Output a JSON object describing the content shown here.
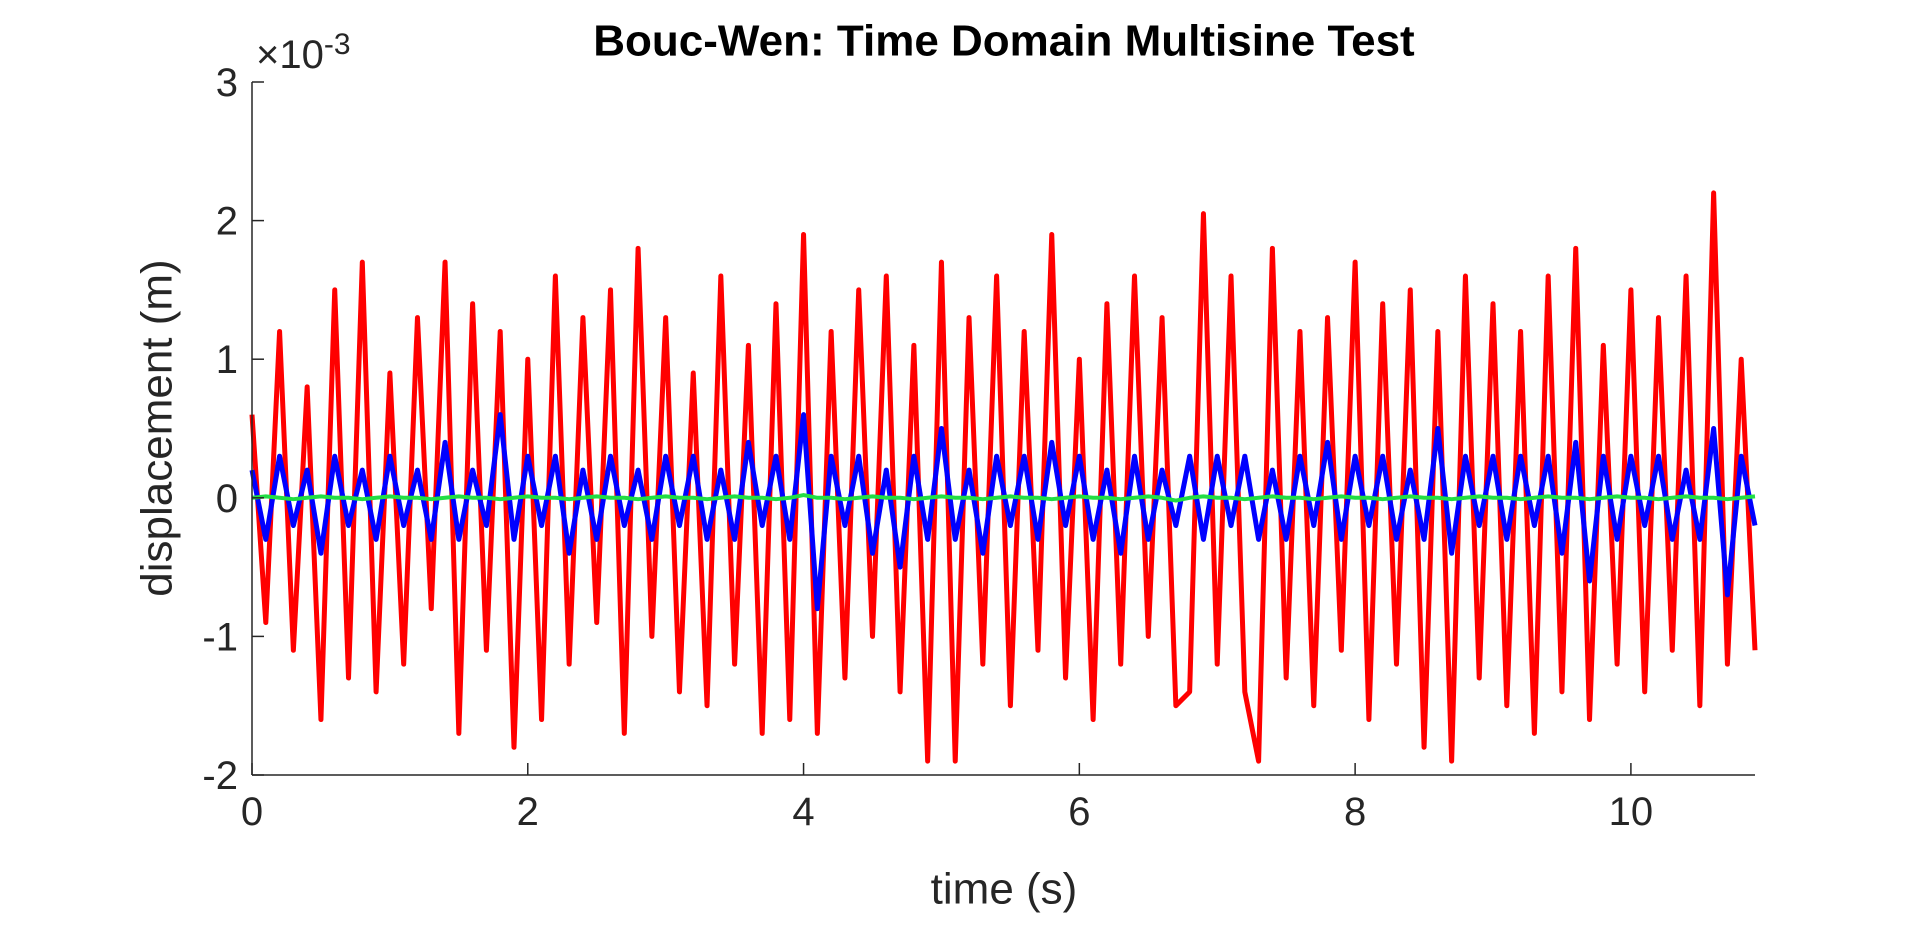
{
  "chart_data": {
    "type": "line",
    "title": "Bouc-Wen: Time Domain Multisine Test",
    "x_label": "time (s)",
    "y_label": "displacement (m)",
    "y_multiplier": {
      "base": "×10",
      "exponent": "-3"
    },
    "xlim": [
      0,
      10.9
    ],
    "ylim": [
      -2,
      3
    ],
    "xticks": [
      0,
      2,
      4,
      6,
      8,
      10
    ],
    "yticks": [
      -2,
      -1,
      0,
      1,
      2,
      3
    ],
    "x": [
      0,
      0.1,
      0.2,
      0.3,
      0.4,
      0.5,
      0.6,
      0.7,
      0.8,
      0.9,
      1,
      1.1,
      1.2,
      1.3,
      1.4,
      1.5,
      1.6,
      1.7,
      1.8,
      1.9,
      2,
      2.1,
      2.2,
      2.3,
      2.4,
      2.5,
      2.6,
      2.7,
      2.8,
      2.9,
      3,
      3.1,
      3.2,
      3.3,
      3.4,
      3.5,
      3.6,
      3.7,
      3.8,
      3.9,
      4,
      4.1,
      4.2,
      4.3,
      4.4,
      4.5,
      4.6,
      4.7,
      4.8,
      4.9,
      5,
      5.1,
      5.2,
      5.3,
      5.4,
      5.5,
      5.6,
      5.7,
      5.8,
      5.9,
      6,
      6.1,
      6.2,
      6.3,
      6.4,
      6.5,
      6.6,
      6.7,
      6.8,
      6.9,
      7,
      7.1,
      7.2,
      7.3,
      7.4,
      7.5,
      7.6,
      7.7,
      7.8,
      7.9,
      8,
      8.1,
      8.2,
      8.3,
      8.4,
      8.5,
      8.6,
      8.7,
      8.8,
      8.9,
      9,
      9.1,
      9.2,
      9.3,
      9.4,
      9.5,
      9.6,
      9.7,
      9.8,
      9.9,
      10,
      10.1,
      10.2,
      10.3,
      10.4,
      10.5,
      10.6,
      10.7,
      10.8,
      10.9
    ],
    "series": [
      {
        "name": "red",
        "color": "#ff0000",
        "values": [
          0.6,
          -0.9,
          1.2,
          -1.1,
          0.8,
          -1.6,
          1.5,
          -1.3,
          1.7,
          -1.4,
          0.9,
          -1.2,
          1.3,
          -0.8,
          1.7,
          -1.7,
          1.4,
          -1.1,
          1.2,
          -1.8,
          1.0,
          -1.6,
          1.6,
          -1.2,
          1.3,
          -0.9,
          1.5,
          -1.7,
          1.8,
          -1.0,
          1.3,
          -1.4,
          0.9,
          -1.5,
          1.6,
          -1.2,
          1.1,
          -1.7,
          1.4,
          -1.6,
          1.9,
          -1.7,
          1.2,
          -1.3,
          1.5,
          -1.0,
          1.6,
          -1.4,
          1.1,
          -1.9,
          1.7,
          -1.9,
          1.3,
          -1.2,
          1.6,
          -1.5,
          1.2,
          -1.1,
          1.9,
          -1.3,
          1.0,
          -1.6,
          1.4,
          -1.2,
          1.6,
          -1.0,
          1.3,
          -1.5,
          -1.4,
          2.05,
          -1.2,
          1.6,
          -1.4,
          -1.9,
          1.8,
          -1.3,
          1.2,
          -1.5,
          1.3,
          -1.1,
          1.7,
          -1.6,
          1.4,
          -1.2,
          1.5,
          -1.8,
          1.2,
          -1.9,
          1.6,
          -1.3,
          1.4,
          -1.5,
          1.2,
          -1.7,
          1.6,
          -1.4,
          1.8,
          -1.6,
          1.1,
          -1.2,
          1.5,
          -1.4,
          1.3,
          -1.1,
          1.6,
          -1.5,
          2.2,
          -1.2,
          1.0,
          -1.1
        ]
      },
      {
        "name": "blue",
        "color": "#0000ff",
        "values": [
          0.2,
          -0.3,
          0.3,
          -0.2,
          0.2,
          -0.4,
          0.3,
          -0.2,
          0.2,
          -0.3,
          0.3,
          -0.2,
          0.2,
          -0.3,
          0.4,
          -0.3,
          0.2,
          -0.2,
          0.6,
          -0.3,
          0.3,
          -0.2,
          0.3,
          -0.4,
          0.2,
          -0.3,
          0.3,
          -0.2,
          0.2,
          -0.3,
          0.3,
          -0.2,
          0.3,
          -0.3,
          0.2,
          -0.3,
          0.4,
          -0.2,
          0.3,
          -0.3,
          0.6,
          -0.8,
          0.3,
          -0.2,
          0.3,
          -0.4,
          0.2,
          -0.5,
          0.3,
          -0.3,
          0.5,
          -0.3,
          0.2,
          -0.4,
          0.3,
          -0.2,
          0.3,
          -0.3,
          0.4,
          -0.2,
          0.3,
          -0.3,
          0.2,
          -0.4,
          0.3,
          -0.3,
          0.2,
          -0.2,
          0.3,
          -0.3,
          0.3,
          -0.2,
          0.3,
          -0.3,
          0.2,
          -0.3,
          0.3,
          -0.2,
          0.4,
          -0.3,
          0.3,
          -0.2,
          0.3,
          -0.3,
          0.2,
          -0.3,
          0.5,
          -0.4,
          0.3,
          -0.2,
          0.3,
          -0.3,
          0.3,
          -0.2,
          0.3,
          -0.4,
          0.4,
          -0.6,
          0.3,
          -0.3,
          0.3,
          -0.2,
          0.3,
          -0.3,
          0.2,
          -0.3,
          0.5,
          -0.7,
          0.3,
          -0.2
        ]
      },
      {
        "name": "green",
        "color": "#22dd44",
        "values": [
          0.0,
          0.01,
          0.0,
          -0.01,
          0.0,
          0.01,
          0.0,
          0.0,
          -0.01,
          0.0,
          0.01,
          0.0,
          0.0,
          -0.01,
          0.0,
          0.01,
          0.0,
          0.0,
          -0.01,
          0.0,
          0.01,
          0.0,
          0.0,
          -0.01,
          0.0,
          0.01,
          0.0,
          0.0,
          -0.01,
          0.0,
          0.01,
          0.0,
          0.0,
          -0.01,
          0.0,
          0.01,
          0.0,
          0.0,
          -0.01,
          0.0,
          0.02,
          0.0,
          0.0,
          -0.01,
          0.0,
          0.01,
          0.0,
          0.0,
          -0.01,
          0.0,
          0.01,
          0.0,
          0.0,
          -0.01,
          0.0,
          0.01,
          0.0,
          0.0,
          -0.01,
          0.0,
          0.01,
          0.0,
          0.0,
          -0.01,
          0.0,
          0.01,
          0.0,
          -0.02,
          0.0,
          0.01,
          0.0,
          0.0,
          -0.01,
          0.0,
          0.01,
          0.0,
          0.0,
          -0.01,
          0.0,
          0.01,
          0.0,
          0.0,
          -0.01,
          0.0,
          0.01,
          0.0,
          0.0,
          -0.01,
          0.0,
          0.01,
          0.0,
          0.0,
          -0.01,
          0.0,
          0.01,
          0.0,
          0.0,
          -0.01,
          0.0,
          0.01,
          0.0,
          0.0,
          -0.01,
          0.0,
          0.01,
          0.0,
          0.0,
          -0.01,
          0.0,
          0.01
        ]
      }
    ]
  }
}
